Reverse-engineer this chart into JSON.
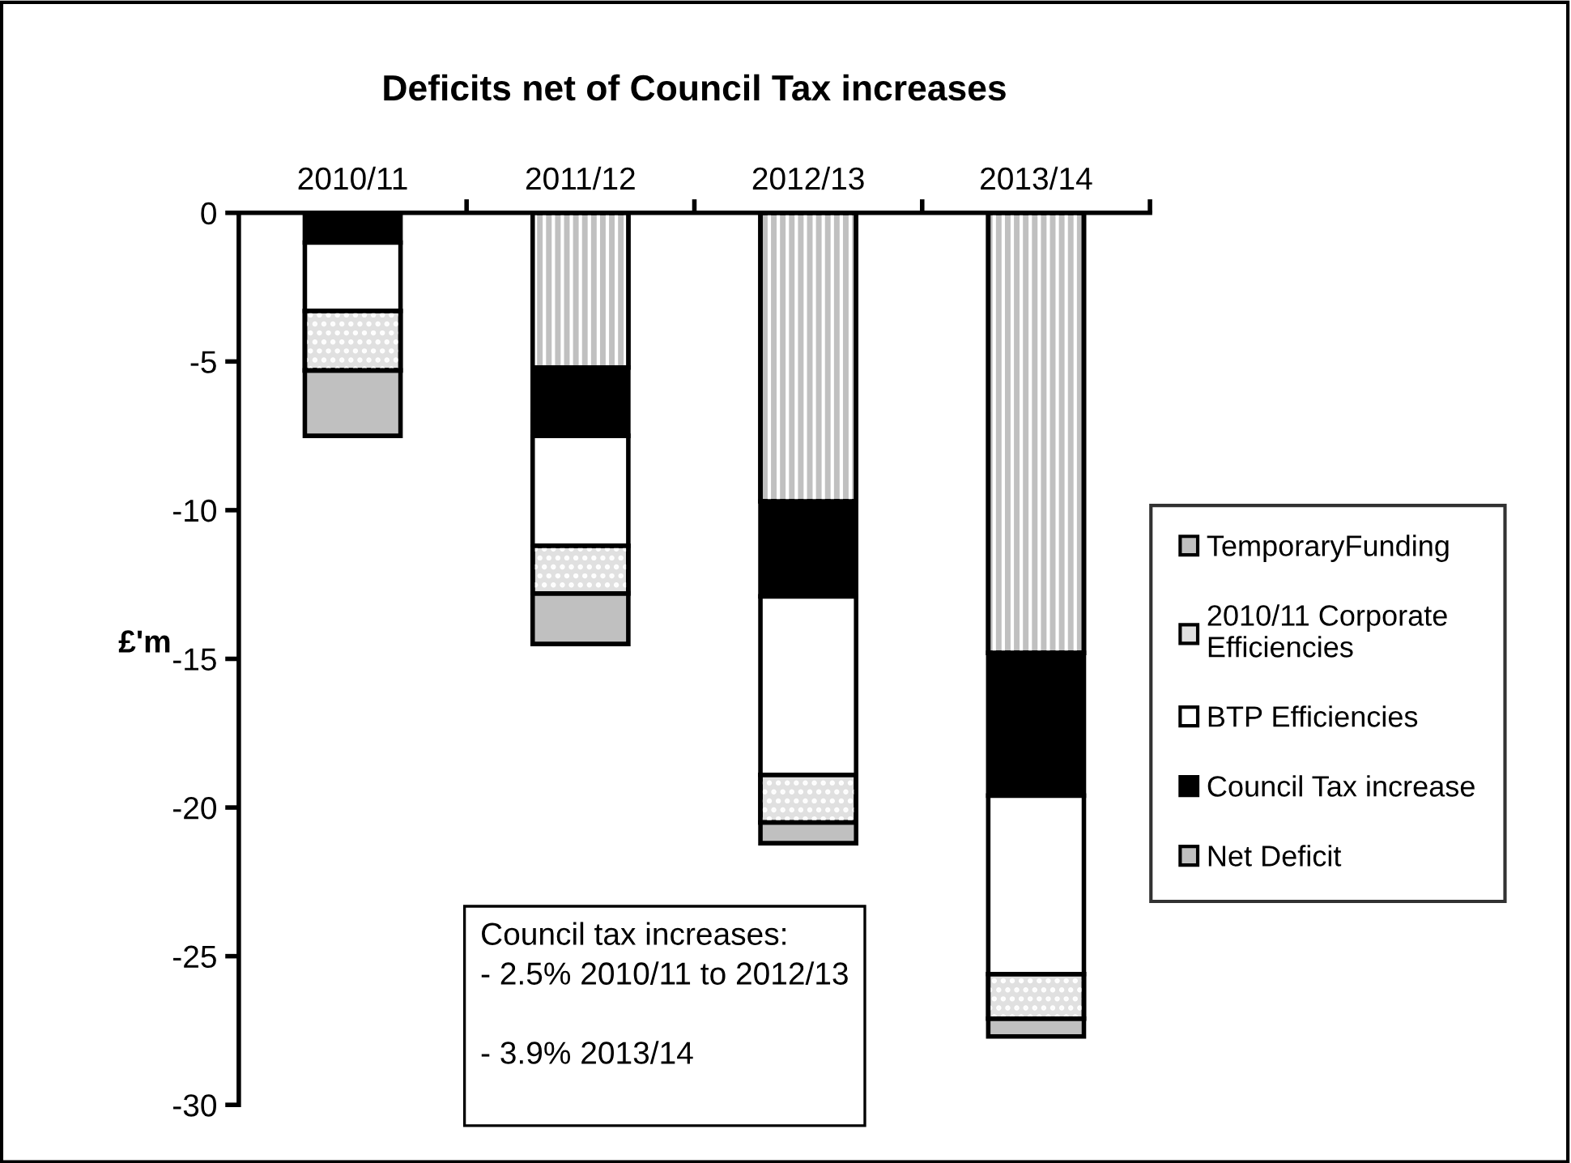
{
  "chart_data": {
    "type": "bar",
    "title": "Deficits net of Council Tax increases",
    "ylabel": "£'m",
    "categories": [
      "2010/11",
      "2011/12",
      "2012/13",
      "2013/14"
    ],
    "stacked": true,
    "series": [
      {
        "name": "Net Deficit",
        "color": "#c0c0c0",
        "values": [
          0,
          -5.2,
          -9.7,
          -14.8
        ]
      },
      {
        "name": "Council Tax increase",
        "color": "#000000",
        "values": [
          -1.0,
          -2.3,
          -3.2,
          -4.8
        ]
      },
      {
        "name": "BTP Efficiencies",
        "color": "#ffffff",
        "values": [
          -2.3,
          -3.7,
          -6.0,
          -6.0
        ]
      },
      {
        "name": "2010/11 Corporate Efficiencies",
        "color": "#e0e0e0",
        "values": [
          -2.0,
          -1.6,
          -1.6,
          -1.5
        ]
      },
      {
        "name": "TemporaryFunding",
        "color": "#c0c0c0",
        "values": [
          -2.2,
          -1.7,
          -0.7,
          -0.6
        ]
      }
    ],
    "ylim": [
      -30,
      0
    ],
    "yticks": [
      -30,
      -25,
      -20,
      -15,
      -10,
      -5,
      0
    ],
    "grid": false,
    "legend": "right",
    "annotations": [
      "Council tax increases:",
      "- 2.5% 2010/11 to 2012/13",
      "- 3.9% 2013/14"
    ]
  }
}
